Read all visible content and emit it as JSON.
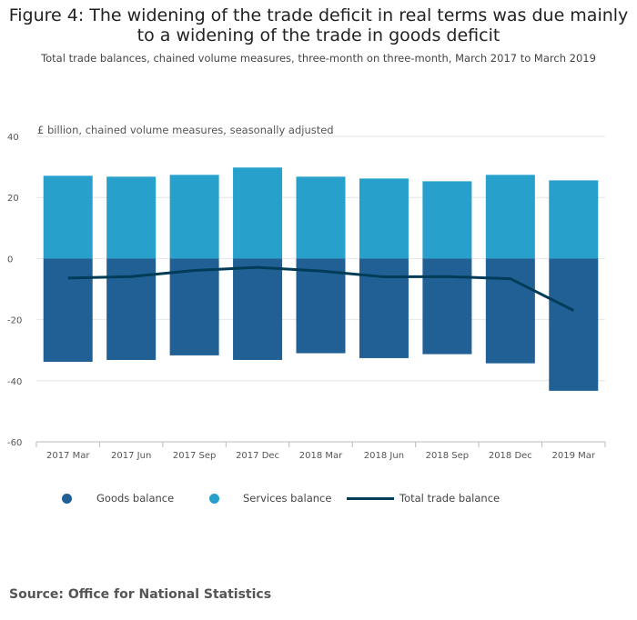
{
  "title": "Figure 4: The widening of the trade deficit in real terms was due mainly to a widening of the trade in goods deficit",
  "subtitle": "Total trade balances, chained volume measures, three-month on three-month, March 2017 to March 2019",
  "source": "Source: Office for National Statistics",
  "chart_data": {
    "type": "bar",
    "stacked": true,
    "ylabel": "£ billion, chained volume measures, seasonally adjusted",
    "ylim": [
      -60,
      40
    ],
    "yticks": [
      40,
      20,
      0,
      -20,
      -40,
      -60
    ],
    "grid": true,
    "legend_placement": "bottom",
    "categories": [
      "2017 Mar",
      "2017 Jun",
      "2017 Sep",
      "2017 Dec",
      "2018 Mar",
      "2018 Jun",
      "2018 Sep",
      "2018 Dec",
      "2019 Mar"
    ],
    "series": [
      {
        "name": "Goods balance",
        "type": "bar",
        "color": "#206095",
        "values": [
          -33.8,
          -33.2,
          -31.7,
          -33.2,
          -31.0,
          -32.6,
          -31.3,
          -34.3,
          -43.3
        ]
      },
      {
        "name": "Services balance",
        "type": "bar",
        "color": "#27a0cc",
        "values": [
          27.1,
          26.8,
          27.4,
          29.8,
          26.8,
          26.2,
          25.3,
          27.4,
          25.6
        ]
      },
      {
        "name": "Total trade balance",
        "type": "line",
        "color": "#003c57",
        "values": [
          -6.4,
          -5.9,
          -3.9,
          -2.9,
          -4.1,
          -6.0,
          -5.9,
          -6.6,
          -17.0
        ]
      }
    ]
  }
}
